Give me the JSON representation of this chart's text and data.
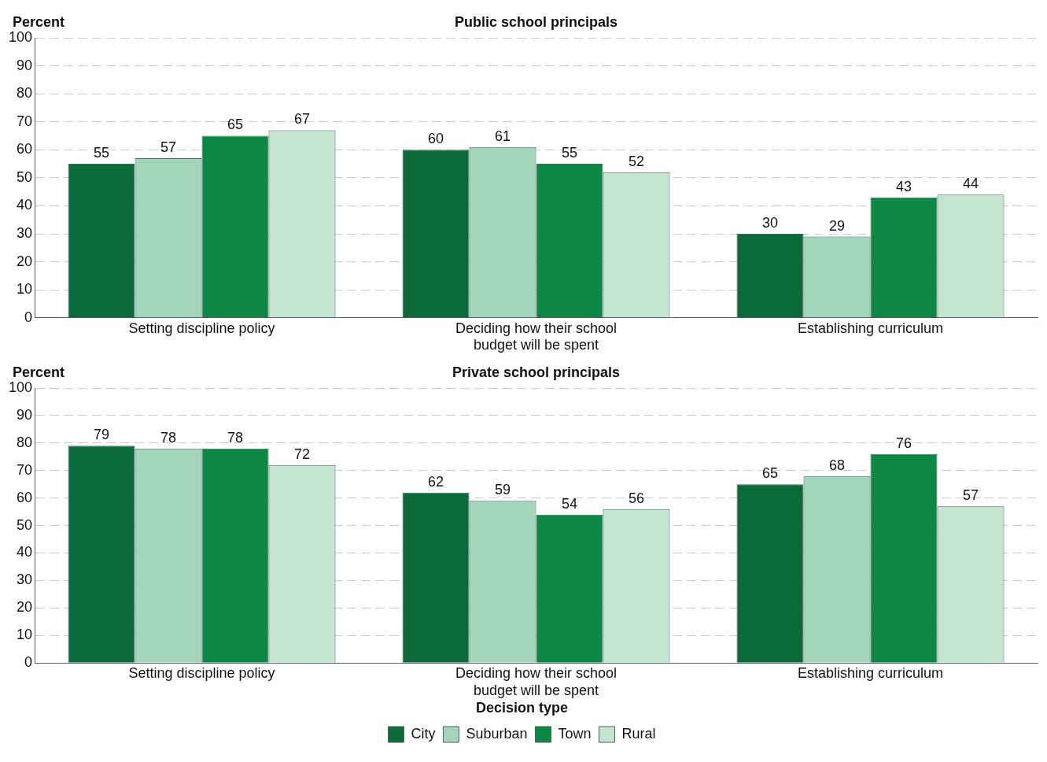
{
  "chart_data": [
    {
      "type": "bar",
      "title": "Public school principals",
      "ylabel": "Percent",
      "categories": [
        "Setting discipline policy",
        "Deciding how their school budget will be spent",
        "Establishing curriculum"
      ],
      "series": [
        {
          "color": "#0b6b38",
          "values": [
            55,
            60,
            30
          ]
        },
        {
          "color": "#a3d6b8",
          "values": [
            57,
            61,
            29
          ]
        },
        {
          "color": "#0d8744",
          "values": [
            65,
            55,
            43
          ]
        },
        {
          "color": "#c4e6d0",
          "values": [
            67,
            52,
            44
          ]
        }
      ],
      "ylim": [
        0,
        100
      ],
      "yticks": [
        0,
        10,
        20,
        30,
        40,
        50,
        60,
        70,
        80,
        90,
        100
      ],
      "grid": "y",
      "data_labels": true,
      "legend": false
    },
    {
      "type": "bar",
      "title": "Private school principals",
      "ylabel": "Percent",
      "categories": [
        "Setting discipline policy",
        "Deciding how their school budget will be spent",
        "Establishing curriculum"
      ],
      "series": [
        {
          "name": "City",
          "color": "#0b6b38",
          "values": [
            79,
            62,
            65
          ]
        },
        {
          "name": "Suburban",
          "color": "#a3d6b8",
          "values": [
            78,
            59,
            68
          ]
        },
        {
          "name": "Town",
          "color": "#0d8744",
          "values": [
            78,
            54,
            76
          ]
        },
        {
          "name": "Rural",
          "color": "#c4e6d0",
          "values": [
            72,
            56,
            57
          ]
        }
      ],
      "ylim": [
        0,
        100
      ],
      "yticks": [
        0,
        10,
        20,
        30,
        40,
        50,
        60,
        70,
        80,
        90,
        100
      ],
      "grid": "y",
      "data_labels": true,
      "legend": "bottom",
      "legend_title": "Decision type"
    }
  ]
}
